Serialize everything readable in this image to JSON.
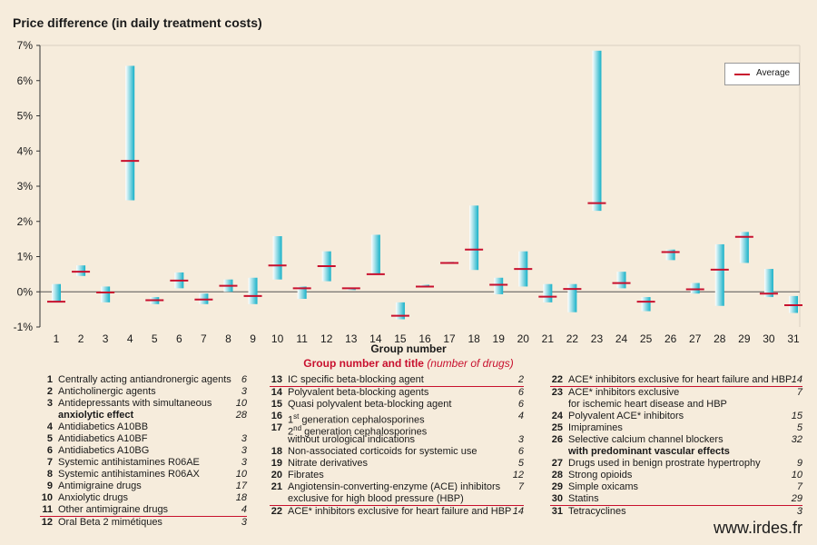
{
  "chart_data": {
    "type": "floating-range",
    "title": "Price difference (in daily treatment costs)",
    "xlabel": "Group number",
    "legend_title": "Group number and title",
    "legend_title_note": "(number of drugs)",
    "series_label": "Average",
    "y_ticks": [
      "7%",
      "6%",
      "5%",
      "4%",
      "3%",
      "2%",
      "1%",
      "0%",
      "-1%"
    ],
    "ylim": [
      -1,
      7
    ],
    "categories": [
      "1",
      "2",
      "3",
      "4",
      "5",
      "6",
      "7",
      "8",
      "9",
      "10",
      "11",
      "12",
      "13",
      "14",
      "15",
      "16",
      "17",
      "18",
      "19",
      "20",
      "21",
      "22",
      "23",
      "24",
      "25",
      "26",
      "27",
      "28",
      "29",
      "30",
      "31"
    ],
    "min": [
      -0.3,
      0.45,
      -0.3,
      2.6,
      -0.35,
      0.1,
      -0.35,
      0.0,
      -0.35,
      0.35,
      -0.2,
      0.3,
      0.1,
      0.5,
      -0.78,
      0.13,
      0.8,
      0.62,
      -0.07,
      0.15,
      -0.3,
      -0.58,
      2.3,
      0.1,
      -0.55,
      0.9,
      -0.05,
      -0.4,
      0.82,
      -0.15,
      -0.6
    ],
    "max": [
      0.22,
      0.75,
      0.15,
      6.42,
      -0.15,
      0.55,
      -0.05,
      0.35,
      0.4,
      1.58,
      0.15,
      1.15,
      0.1,
      1.62,
      -0.3,
      0.2,
      0.85,
      2.45,
      0.4,
      1.15,
      0.22,
      0.22,
      6.85,
      0.57,
      -0.15,
      1.2,
      0.25,
      1.35,
      1.7,
      0.65,
      -0.12
    ],
    "average": [
      -0.28,
      0.57,
      -0.02,
      3.72,
      -0.24,
      0.32,
      -0.22,
      0.17,
      -0.12,
      0.75,
      0.1,
      0.73,
      0.1,
      0.5,
      -0.68,
      0.15,
      0.82,
      1.2,
      0.2,
      0.65,
      -0.14,
      0.08,
      2.52,
      0.25,
      -0.28,
      1.13,
      0.07,
      0.63,
      1.56,
      -0.05,
      -0.38
    ],
    "colors": {
      "bar": "#17b1c8",
      "bar_light": "#ffffff",
      "average": "#c8102e",
      "axis": "#333333",
      "grid": "#d9d0c2"
    }
  },
  "legend": {
    "col1": [
      {
        "num": "1",
        "name": "Centrally acting antiandronergic agents",
        "count": "6"
      },
      {
        "num": "2",
        "name": "Anticholinergic agents",
        "count": "3"
      },
      {
        "num": "3",
        "name": "Antidepressants with simultaneous",
        "count": "10"
      },
      {
        "num": "",
        "name": "",
        "count": "28",
        "cont": "anxiolytic effect"
      },
      {
        "num": "4",
        "name": "Antidiabetics A10BB",
        "count": ""
      },
      {
        "num": "5",
        "name": "Antidiabetics A10BF",
        "count": "3"
      },
      {
        "num": "6",
        "name": "Antidiabetics A10BG",
        "count": "3"
      },
      {
        "num": "7",
        "name": "Systemic antihistamines R06AE",
        "count": "3"
      },
      {
        "num": "8",
        "name": "Systemic antihistamines R06AX",
        "count": "10"
      },
      {
        "num": "9",
        "name": "Antimigraine drugs",
        "count": "17"
      },
      {
        "num": "10",
        "name": "Anxiolytic drugs",
        "count": "18"
      },
      {
        "num": "11",
        "name": "Other antimigraine drugs",
        "count": "4"
      },
      {
        "num": "12",
        "name": "Oral Beta 2 mimétiques",
        "count": "3"
      }
    ],
    "col2": [
      {
        "num": "13",
        "name": "IC specific beta-blocking agent",
        "count": "2"
      },
      {
        "num": "14",
        "name": "Polyvalent beta-blocking agents",
        "count": "6"
      },
      {
        "num": "15",
        "name": "Quasi polyvalent beta-blocking agent",
        "count": "6"
      },
      {
        "num": "16",
        "name": "1st generation cephalosporines",
        "count": "4"
      },
      {
        "num": "17",
        "name": "2nd generation cephalosporines",
        "count": ""
      },
      {
        "num": "",
        "name": "without urological indications",
        "count": "3"
      },
      {
        "num": "18",
        "name": "Non-associated corticoids for systemic use",
        "count": "6"
      },
      {
        "num": "19",
        "name": "Nitrate derivatives",
        "count": "5"
      },
      {
        "num": "20",
        "name": "Fibrates",
        "count": "12"
      },
      {
        "num": "21",
        "name": "Angiotensin-converting-enzyme (ACE) inhibitors",
        "count": "7"
      },
      {
        "num": "",
        "name": "exclusive for high blood pressure (HBP)",
        "count": ""
      },
      {
        "num": "22",
        "name": "ACE* inhibitors exclusive for heart failure and HBP",
        "count": "14"
      }
    ],
    "col3": [
      {
        "num": "22",
        "name": "ACE* inhibitors exclusive for heart failure and HBP",
        "count": "14"
      },
      {
        "num": "23",
        "name": "ACE* inhibitors exclusive",
        "count": "7"
      },
      {
        "num": "",
        "name": "for ischemic heart disease and HBP",
        "count": ""
      },
      {
        "num": "24",
        "name": "Polyvalent ACE* inhibitors",
        "count": "15"
      },
      {
        "num": "25",
        "name": "Imipramines",
        "count": "5"
      },
      {
        "num": "26",
        "name": "Selective calcium channel blockers",
        "count": "32"
      },
      {
        "num": "",
        "name": "",
        "count": "",
        "cont": "with predominant vascular effects"
      },
      {
        "num": "27",
        "name": "Drugs used in benign prostrate hypertrophy",
        "count": "9"
      },
      {
        "num": "28",
        "name": "Strong opioids",
        "count": "10"
      },
      {
        "num": "29",
        "name": "Simple oxicams",
        "count": "7"
      },
      {
        "num": "30",
        "name": "Statins",
        "count": "29"
      },
      {
        "num": "31",
        "name": "Tetracyclines",
        "count": "3"
      }
    ]
  },
  "footer": "www.irdes.fr"
}
